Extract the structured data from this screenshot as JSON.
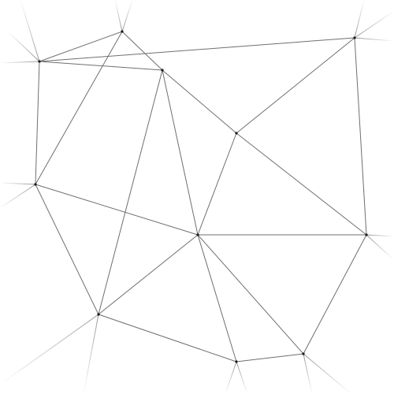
{
  "diagram": {
    "type": "triangulation-mesh",
    "nodes": [
      {
        "id": "n1"
      },
      {
        "id": "n2"
      },
      {
        "id": "n3"
      },
      {
        "id": "n4"
      },
      {
        "id": "n5"
      },
      {
        "id": "n6"
      },
      {
        "id": "n7"
      },
      {
        "id": "n8"
      },
      {
        "id": "n9"
      },
      {
        "id": "n10"
      },
      {
        "id": "n11"
      },
      {
        "id": "n12"
      }
    ],
    "edges": [
      [
        "n1",
        "n2"
      ],
      [
        "n1",
        "n3"
      ],
      [
        "n1",
        "n6"
      ],
      [
        "n2",
        "n6"
      ],
      [
        "n2",
        "n4"
      ],
      [
        "n2",
        "n3"
      ],
      [
        "n3",
        "n5"
      ],
      [
        "n3",
        "n7"
      ],
      [
        "n3",
        "n8"
      ],
      [
        "n4",
        "n5"
      ],
      [
        "n4",
        "n9"
      ],
      [
        "n5",
        "n8"
      ],
      [
        "n5",
        "n9"
      ],
      [
        "n6",
        "n7"
      ],
      [
        "n6",
        "n8"
      ],
      [
        "n7",
        "n8"
      ],
      [
        "n7",
        "n10"
      ],
      [
        "n8",
        "n9"
      ],
      [
        "n8",
        "n10"
      ],
      [
        "n8",
        "n11"
      ],
      [
        "n8",
        "n12"
      ],
      [
        "n9",
        "n12"
      ],
      [
        "n10",
        "n11"
      ],
      [
        "n11",
        "n12"
      ]
    ],
    "colors": {
      "edge": "#6f6f6f",
      "node": "#1a1a1a",
      "background": "#ffffff"
    }
  }
}
